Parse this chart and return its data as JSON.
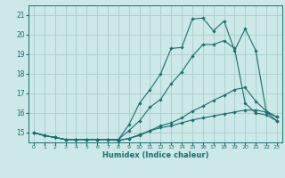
{
  "title": "",
  "xlabel": "Humidex (Indice chaleur)",
  "xlim": [
    -0.5,
    23.5
  ],
  "ylim": [
    14.5,
    21.5
  ],
  "xticks": [
    0,
    1,
    2,
    3,
    4,
    5,
    6,
    7,
    8,
    9,
    10,
    11,
    12,
    13,
    14,
    15,
    16,
    17,
    18,
    19,
    20,
    21,
    22,
    23
  ],
  "yticks": [
    15,
    16,
    17,
    18,
    19,
    20,
    21
  ],
  "background_color": "#cce8e8",
  "grid_color": "#aacccc",
  "line_color": "#1a6e6e",
  "lines": [
    [
      15.0,
      14.85,
      14.75,
      14.65,
      14.65,
      14.65,
      14.65,
      14.65,
      14.65,
      15.4,
      16.5,
      17.2,
      18.0,
      19.3,
      19.35,
      20.8,
      20.85,
      20.2,
      20.7,
      19.2,
      20.3,
      19.2,
      16.05,
      15.6
    ],
    [
      15.0,
      14.85,
      14.75,
      14.65,
      14.65,
      14.65,
      14.65,
      14.65,
      14.65,
      15.1,
      15.6,
      16.3,
      16.7,
      17.5,
      18.1,
      18.9,
      19.5,
      19.5,
      19.7,
      19.3,
      16.5,
      16.0,
      15.9,
      15.6
    ],
    [
      15.0,
      14.85,
      14.75,
      14.65,
      14.65,
      14.65,
      14.65,
      14.65,
      14.6,
      14.7,
      14.85,
      15.1,
      15.35,
      15.5,
      15.75,
      16.1,
      16.35,
      16.65,
      16.9,
      17.2,
      17.3,
      16.6,
      16.1,
      15.8
    ],
    [
      15.0,
      14.85,
      14.75,
      14.65,
      14.65,
      14.65,
      14.65,
      14.65,
      14.6,
      14.7,
      14.9,
      15.1,
      15.25,
      15.35,
      15.5,
      15.65,
      15.75,
      15.85,
      15.95,
      16.05,
      16.15,
      16.15,
      16.05,
      15.8
    ]
  ]
}
